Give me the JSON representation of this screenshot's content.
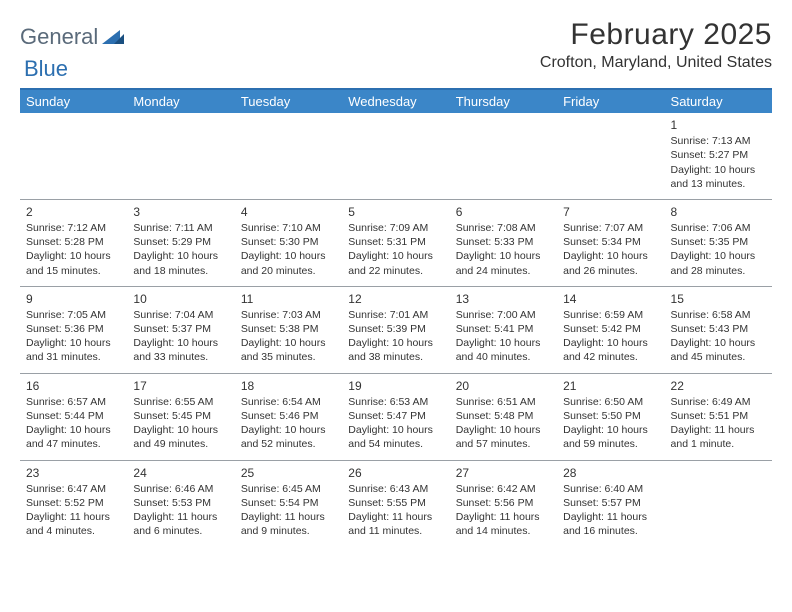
{
  "logo": {
    "text1": "General",
    "text2": "Blue"
  },
  "title": "February 2025",
  "location": "Crofton, Maryland, United States",
  "header_bg": "#3b86c8",
  "rule_color": "#2c6fb0",
  "cell_border": "#9aa0a6",
  "days": [
    "Sunday",
    "Monday",
    "Tuesday",
    "Wednesday",
    "Thursday",
    "Friday",
    "Saturday"
  ],
  "weeks": [
    [
      null,
      null,
      null,
      null,
      null,
      null,
      {
        "n": "1",
        "sr": "7:13 AM",
        "ss": "5:27 PM",
        "dl": "10 hours and 13 minutes."
      }
    ],
    [
      {
        "n": "2",
        "sr": "7:12 AM",
        "ss": "5:28 PM",
        "dl": "10 hours and 15 minutes."
      },
      {
        "n": "3",
        "sr": "7:11 AM",
        "ss": "5:29 PM",
        "dl": "10 hours and 18 minutes."
      },
      {
        "n": "4",
        "sr": "7:10 AM",
        "ss": "5:30 PM",
        "dl": "10 hours and 20 minutes."
      },
      {
        "n": "5",
        "sr": "7:09 AM",
        "ss": "5:31 PM",
        "dl": "10 hours and 22 minutes."
      },
      {
        "n": "6",
        "sr": "7:08 AM",
        "ss": "5:33 PM",
        "dl": "10 hours and 24 minutes."
      },
      {
        "n": "7",
        "sr": "7:07 AM",
        "ss": "5:34 PM",
        "dl": "10 hours and 26 minutes."
      },
      {
        "n": "8",
        "sr": "7:06 AM",
        "ss": "5:35 PM",
        "dl": "10 hours and 28 minutes."
      }
    ],
    [
      {
        "n": "9",
        "sr": "7:05 AM",
        "ss": "5:36 PM",
        "dl": "10 hours and 31 minutes."
      },
      {
        "n": "10",
        "sr": "7:04 AM",
        "ss": "5:37 PM",
        "dl": "10 hours and 33 minutes."
      },
      {
        "n": "11",
        "sr": "7:03 AM",
        "ss": "5:38 PM",
        "dl": "10 hours and 35 minutes."
      },
      {
        "n": "12",
        "sr": "7:01 AM",
        "ss": "5:39 PM",
        "dl": "10 hours and 38 minutes."
      },
      {
        "n": "13",
        "sr": "7:00 AM",
        "ss": "5:41 PM",
        "dl": "10 hours and 40 minutes."
      },
      {
        "n": "14",
        "sr": "6:59 AM",
        "ss": "5:42 PM",
        "dl": "10 hours and 42 minutes."
      },
      {
        "n": "15",
        "sr": "6:58 AM",
        "ss": "5:43 PM",
        "dl": "10 hours and 45 minutes."
      }
    ],
    [
      {
        "n": "16",
        "sr": "6:57 AM",
        "ss": "5:44 PM",
        "dl": "10 hours and 47 minutes."
      },
      {
        "n": "17",
        "sr": "6:55 AM",
        "ss": "5:45 PM",
        "dl": "10 hours and 49 minutes."
      },
      {
        "n": "18",
        "sr": "6:54 AM",
        "ss": "5:46 PM",
        "dl": "10 hours and 52 minutes."
      },
      {
        "n": "19",
        "sr": "6:53 AM",
        "ss": "5:47 PM",
        "dl": "10 hours and 54 minutes."
      },
      {
        "n": "20",
        "sr": "6:51 AM",
        "ss": "5:48 PM",
        "dl": "10 hours and 57 minutes."
      },
      {
        "n": "21",
        "sr": "6:50 AM",
        "ss": "5:50 PM",
        "dl": "10 hours and 59 minutes."
      },
      {
        "n": "22",
        "sr": "6:49 AM",
        "ss": "5:51 PM",
        "dl": "11 hours and 1 minute."
      }
    ],
    [
      {
        "n": "23",
        "sr": "6:47 AM",
        "ss": "5:52 PM",
        "dl": "11 hours and 4 minutes."
      },
      {
        "n": "24",
        "sr": "6:46 AM",
        "ss": "5:53 PM",
        "dl": "11 hours and 6 minutes."
      },
      {
        "n": "25",
        "sr": "6:45 AM",
        "ss": "5:54 PM",
        "dl": "11 hours and 9 minutes."
      },
      {
        "n": "26",
        "sr": "6:43 AM",
        "ss": "5:55 PM",
        "dl": "11 hours and 11 minutes."
      },
      {
        "n": "27",
        "sr": "6:42 AM",
        "ss": "5:56 PM",
        "dl": "11 hours and 14 minutes."
      },
      {
        "n": "28",
        "sr": "6:40 AM",
        "ss": "5:57 PM",
        "dl": "11 hours and 16 minutes."
      },
      null
    ]
  ],
  "labels": {
    "sunrise": "Sunrise: ",
    "sunset": "Sunset: ",
    "daylight": "Daylight: "
  }
}
